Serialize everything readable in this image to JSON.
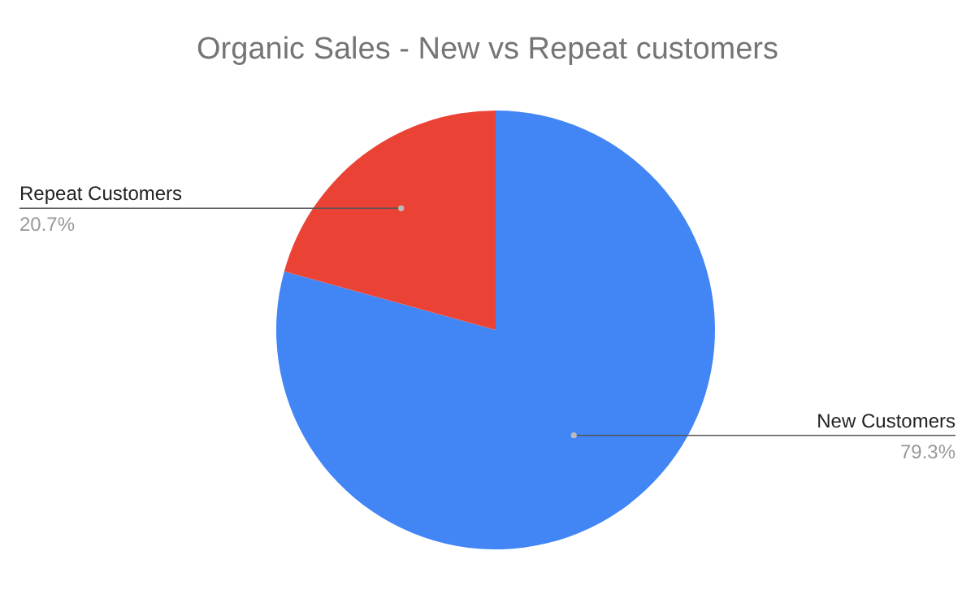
{
  "chart_data": {
    "type": "pie",
    "title": "Organic Sales - New vs Repeat customers",
    "categories": [
      "New Customers",
      "Repeat Customers"
    ],
    "values": [
      79.3,
      20.7
    ],
    "colors": [
      "#4285f4",
      "#ea4335"
    ],
    "value_labels": [
      "79.3%",
      "20.7%"
    ],
    "legend": false
  }
}
